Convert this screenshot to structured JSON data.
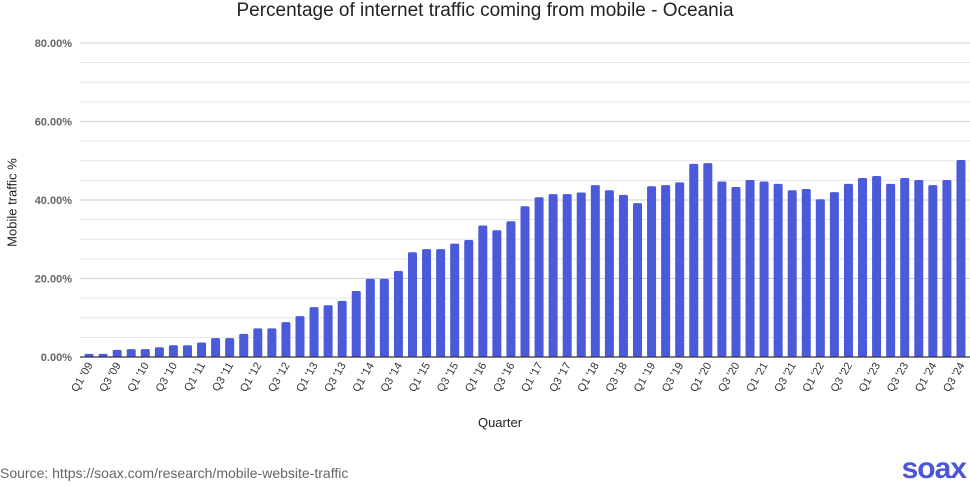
{
  "chart_data": {
    "type": "bar",
    "title": "Percentage of internet traffic coming from mobile - Oceania",
    "xlabel": "Quarter",
    "ylabel": "Mobile traffic %",
    "ylim": [
      0,
      80
    ],
    "yticks": [
      "0.00%",
      "20.00%",
      "40.00%",
      "60.00%",
      "80.00%"
    ],
    "grid": true,
    "bar_color": "#4a5ad8",
    "categories": [
      "Q1 '09",
      "Q2 '09",
      "Q3 '09",
      "Q4 '09",
      "Q1 '10",
      "Q2 '10",
      "Q3 '10",
      "Q4 '10",
      "Q1 '11",
      "Q2 '11",
      "Q3 '11",
      "Q4 '11",
      "Q1 '12",
      "Q2 '12",
      "Q3 '12",
      "Q4 '12",
      "Q1 '13",
      "Q2 '13",
      "Q3 '13",
      "Q4 '13",
      "Q1 '14",
      "Q2 '14",
      "Q3 '14",
      "Q4 '14",
      "Q1 '15",
      "Q2 '15",
      "Q3 '15",
      "Q4 '15",
      "Q1 '16",
      "Q2 '16",
      "Q3 '16",
      "Q4 '16",
      "Q1 '17",
      "Q2 '17",
      "Q3 '17",
      "Q4 '17",
      "Q1 '18",
      "Q2 '18",
      "Q3 '18",
      "Q4 '18",
      "Q1 '19",
      "Q2 '19",
      "Q3 '19",
      "Q4 '19",
      "Q1 '20",
      "Q2 '20",
      "Q3 '20",
      "Q4 '20",
      "Q1 '21",
      "Q2 '21",
      "Q3 '21",
      "Q4 '21",
      "Q1 '22",
      "Q2 '22",
      "Q3 '22",
      "Q4 '22",
      "Q1 '23",
      "Q2 '23",
      "Q3 '23",
      "Q4 '23",
      "Q1 '24",
      "Q2 '24",
      "Q3 '24"
    ],
    "values": [
      0.8,
      0.8,
      1.8,
      2.0,
      2.0,
      2.5,
      3.0,
      3.0,
      3.7,
      4.8,
      4.8,
      5.9,
      7.3,
      7.3,
      8.9,
      10.4,
      12.7,
      13.2,
      14.3,
      16.8,
      19.9,
      19.9,
      21.9,
      26.7,
      27.5,
      27.5,
      28.9,
      29.8,
      33.5,
      32.3,
      34.6,
      38.4,
      40.7,
      41.5,
      41.5,
      41.9,
      43.8,
      42.5,
      41.3,
      39.2,
      43.5,
      43.8,
      44.5,
      49.2,
      49.4,
      44.7,
      43.3,
      45.1,
      44.7,
      44.1,
      42.5,
      42.8,
      40.2,
      42.0,
      44.1,
      45.6,
      46.1,
      44.1,
      45.6,
      45.1,
      43.8,
      45.1,
      50.2
    ]
  },
  "footer": {
    "source": "Source: https://soax.com/research/mobile-website-traffic",
    "logo": "soax"
  }
}
